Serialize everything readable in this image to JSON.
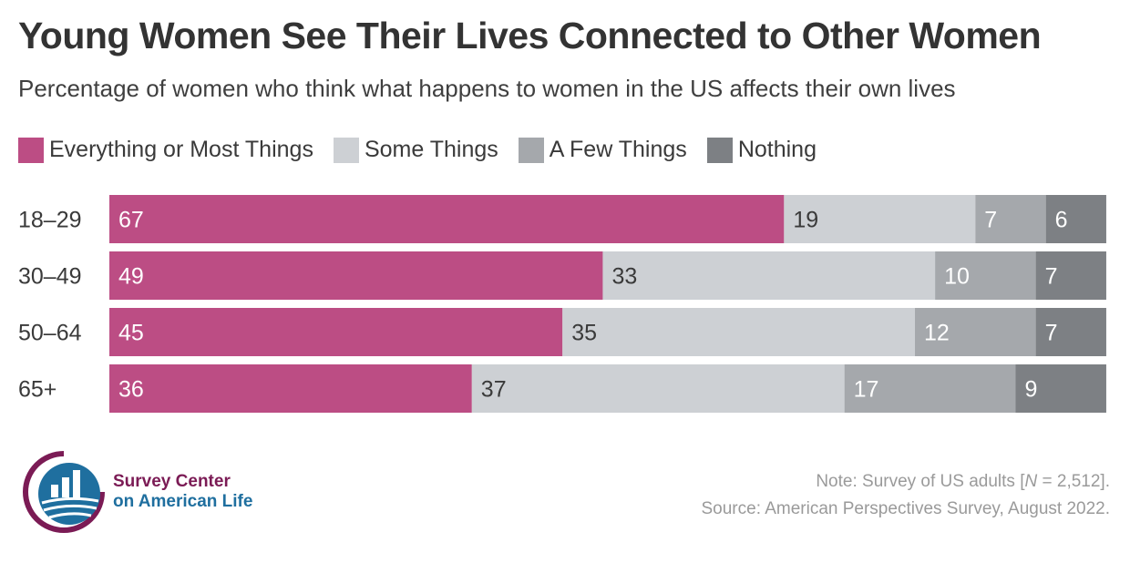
{
  "title": "Young Women See Their Lives Connected to Other Women",
  "subtitle": "Percentage of women who think what happens to women in the US affects their own lives",
  "chart_data": {
    "type": "bar",
    "orientation": "horizontal",
    "stacked": true,
    "categories": [
      "18–29",
      "30–49",
      "50–64",
      "65+"
    ],
    "series": [
      {
        "name": "Everything or Most Things",
        "color": "#bc4d84",
        "label_color": "#ffffff",
        "values": [
          67,
          49,
          45,
          36
        ]
      },
      {
        "name": "Some Things",
        "color": "#cdd0d4",
        "label_color": "#3a3a3a",
        "values": [
          19,
          33,
          35,
          37
        ]
      },
      {
        "name": "A Few Things",
        "color": "#a5a8ac",
        "label_color": "#ffffff",
        "values": [
          7,
          10,
          12,
          17
        ]
      },
      {
        "name": "Nothing",
        "color": "#7d8084",
        "label_color": "#ffffff",
        "values": [
          6,
          7,
          7,
          9
        ]
      }
    ],
    "legend_position": "top-left",
    "grid": false
  },
  "logo": {
    "line1": "Survey Center",
    "line2": "on American Life",
    "colors": {
      "arc": "#7b1b55",
      "circle": "#1f6f9f"
    }
  },
  "note": {
    "prefix": "Note: Survey of US adults [",
    "n_symbol": "N",
    "suffix": " = 2,512].",
    "source": "Source: American Perspectives Survey, August 2022."
  }
}
